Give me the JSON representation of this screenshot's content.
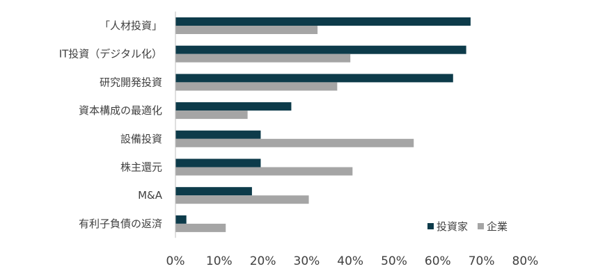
{
  "chart_data": {
    "type": "bar",
    "orientation": "horizontal",
    "title": "",
    "xlabel": "",
    "ylabel": "",
    "categories": [
      "「人材投資」",
      "IT投資（デジタル化）",
      "研究開発投資",
      "資本構成の最適化",
      "設備投資",
      "株主還元",
      "M&A",
      "有利子負債の返済"
    ],
    "series": [
      {
        "name": "投資家",
        "color": "#0d3b4a",
        "values": [
          67.5,
          66.5,
          63.5,
          26.5,
          19.5,
          19.5,
          17.5,
          2.5
        ]
      },
      {
        "name": "企業",
        "color": "#a5a5a5",
        "values": [
          32.5,
          40.0,
          37.0,
          16.5,
          54.5,
          40.5,
          30.5,
          11.5
        ]
      }
    ],
    "xlim": [
      0,
      80
    ],
    "x_ticks": [
      "0%",
      "10%",
      "20%",
      "30%",
      "40%",
      "50%",
      "60%",
      "70%",
      "80%"
    ],
    "grid": false,
    "legend_position": "bottom-right"
  }
}
